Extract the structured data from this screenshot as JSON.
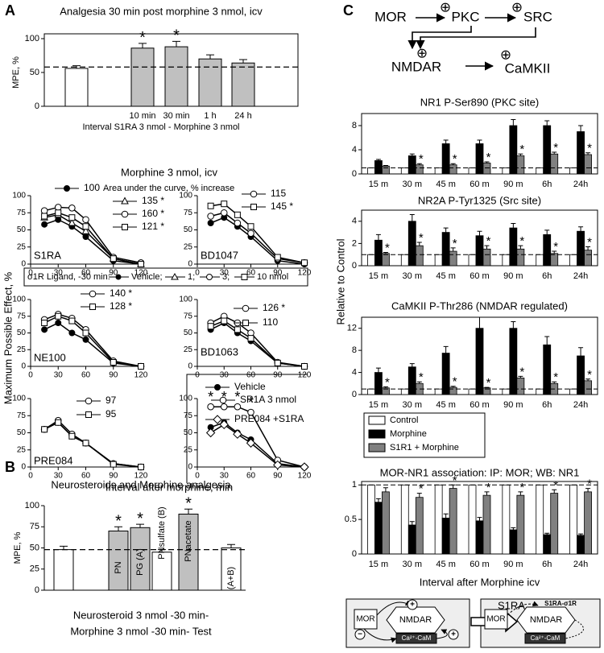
{
  "panel_labels": [
    "A",
    "B",
    "C"
  ],
  "figure_a": {
    "title": "Morphine 3 nmol, icv",
    "ylabel": "Maximum Possible Effect, %",
    "xlabel": "Interval after morphine, min",
    "ligand_legend": {
      "title": "σ1R Ligand, -30 min:",
      "items": [
        "Vehicle;",
        "1;",
        "3;",
        "10 nmol"
      ]
    }
  },
  "panel_c": {
    "ylabel": "Relative to Control"
  },
  "pathway": {
    "nodes": [
      "MOR",
      "PKC",
      "SRC",
      "NMDAR",
      "CaMKII"
    ],
    "sign": "⊕"
  },
  "model": {
    "arrow": "S1RA",
    "left": {
      "mor": "MOR",
      "nmdar": "NMDAR",
      "cam": "Ca²⁺-CaM",
      "plus": "+",
      "minus": "−"
    },
    "right": {
      "complex": "S1RA-σ1R",
      "mor": "MOR",
      "nmdar": "NMDAR",
      "cam": "Ca²⁺-CaM"
    }
  },
  "chart_data": [
    {
      "type": "bar",
      "title": "Analgesia 30 min post morphine 3 nmol, icv",
      "ylabel": "MPE, %",
      "xlabel": "Interval S1RA 3 nmol - Morphine 3 nmol",
      "categories": [
        null,
        "10 min",
        "30 min",
        "1 h",
        "24 h"
      ],
      "values": [
        56,
        86,
        88,
        70,
        64
      ],
      "errors": [
        4,
        7,
        8,
        6,
        5
      ],
      "colors": [
        "#ffffff",
        "#c0c0c0",
        "#c0c0c0",
        "#c0c0c0",
        "#c0c0c0"
      ],
      "ylim": [
        0,
        100
      ],
      "yticks": [
        0,
        50,
        100
      ],
      "reference": 58,
      "star": "*",
      "significant": [
        false,
        true,
        true,
        false,
        false
      ]
    },
    {
      "type": "line",
      "label": "S1RA",
      "legend_title": "Area under the curve, % increase",
      "x": [
        15,
        30,
        45,
        60,
        90,
        120
      ],
      "xlim": [
        0,
        120
      ],
      "xticks": [
        0,
        30,
        60,
        90,
        120
      ],
      "ylim": [
        0,
        100
      ],
      "yticks": [
        0,
        25,
        50,
        75,
        100
      ],
      "series": [
        {
          "name": "100",
          "marker": "filled-circle",
          "color": "#000000",
          "values": [
            58,
            65,
            55,
            40,
            5,
            0
          ]
        },
        {
          "name": "135 *",
          "marker": "triangle",
          "color": "#000000",
          "values": [
            68,
            72,
            60,
            48,
            8,
            0
          ]
        },
        {
          "name": "160 *",
          "marker": "circle",
          "color": "#000000",
          "values": [
            78,
            83,
            82,
            65,
            10,
            2
          ]
        },
        {
          "name": "121 *",
          "marker": "square",
          "color": "#000000",
          "values": [
            70,
            75,
            68,
            55,
            8,
            0
          ]
        }
      ]
    },
    {
      "type": "line",
      "label": "BD1047",
      "x": [
        15,
        30,
        45,
        60,
        90,
        120
      ],
      "xlim": [
        0,
        120
      ],
      "xticks": [
        0,
        30,
        60,
        90,
        120
      ],
      "ylim": [
        0,
        100
      ],
      "yticks": [
        0,
        25,
        50,
        75,
        100
      ],
      "series": [
        {
          "marker": "filled-circle",
          "color": "#000000",
          "values": [
            60,
            68,
            55,
            40,
            5,
            0
          ]
        },
        {
          "name": "115",
          "marker": "circle",
          "color": "#000000",
          "values": [
            70,
            75,
            60,
            45,
            8,
            2
          ]
        },
        {
          "name": "145 *",
          "marker": "square",
          "color": "#000000",
          "values": [
            85,
            88,
            72,
            55,
            10,
            2
          ]
        }
      ]
    },
    {
      "type": "line",
      "label": "NE100",
      "x": [
        15,
        30,
        45,
        60,
        90,
        120
      ],
      "xlim": [
        0,
        120
      ],
      "xticks": [
        0,
        30,
        60,
        90,
        120
      ],
      "ylim": [
        0,
        100
      ],
      "yticks": [
        0,
        25,
        50,
        75,
        100
      ],
      "series": [
        {
          "marker": "filled-circle",
          "color": "#000000",
          "values": [
            55,
            65,
            50,
            40,
            5,
            0
          ]
        },
        {
          "name": "140 *",
          "marker": "circle",
          "color": "#000000",
          "values": [
            70,
            78,
            72,
            55,
            8,
            0
          ]
        },
        {
          "name": "128 *",
          "marker": "square",
          "color": "#000000",
          "values": [
            65,
            75,
            68,
            50,
            6,
            0
          ]
        }
      ]
    },
    {
      "type": "line",
      "label": "BD1063",
      "x": [
        15,
        30,
        45,
        60,
        90,
        120
      ],
      "xlim": [
        0,
        120
      ],
      "xticks": [
        0,
        30,
        60,
        90,
        120
      ],
      "ylim": [
        0,
        100
      ],
      "yticks": [
        0,
        25,
        50,
        75,
        100
      ],
      "series": [
        {
          "marker": "filled-circle",
          "color": "#000000",
          "values": [
            55,
            65,
            50,
            38,
            5,
            0
          ]
        },
        {
          "name": "126 *",
          "marker": "circle",
          "color": "#000000",
          "values": [
            65,
            75,
            65,
            50,
            6,
            0
          ]
        },
        {
          "name": "110",
          "marker": "square",
          "color": "#000000",
          "values": [
            60,
            68,
            55,
            42,
            5,
            0
          ]
        }
      ]
    },
    {
      "type": "line",
      "label": "PRE084",
      "x": [
        15,
        30,
        45,
        60,
        90,
        120
      ],
      "xlim": [
        0,
        120
      ],
      "xticks": [
        0,
        30,
        60,
        90,
        120
      ],
      "ylim": [
        0,
        100
      ],
      "yticks": [
        0,
        25,
        50,
        75,
        100
      ],
      "series": [
        {
          "marker": "filled-circle",
          "color": "#000000",
          "values": [
            55,
            65,
            45,
            35,
            5,
            0
          ]
        },
        {
          "name": "97",
          "marker": "circle",
          "color": "#000000",
          "values": [
            55,
            68,
            48,
            35,
            5,
            0
          ]
        },
        {
          "name": "95",
          "marker": "square",
          "color": "#000000",
          "values": [
            55,
            65,
            45,
            35,
            4,
            0
          ]
        }
      ]
    },
    {
      "type": "line",
      "star": "*",
      "x": [
        15,
        30,
        45,
        60,
        90,
        120
      ],
      "xlim": [
        0,
        120
      ],
      "xticks": [
        0,
        30,
        60,
        90,
        120
      ],
      "ylim": [
        0,
        100
      ],
      "yticks": [
        0,
        25,
        50,
        75,
        100
      ],
      "series": [
        {
          "name": "Vehicle",
          "marker": "filled-circle",
          "color": "#000000",
          "values": [
            58,
            65,
            50,
            40,
            5,
            0
          ]
        },
        {
          "name": "SR1A 3 nmol",
          "marker": "circle",
          "color": "#000000",
          "values": [
            88,
            88,
            88,
            80,
            10,
            0
          ],
          "significant": [
            true,
            true,
            true,
            true,
            false,
            false
          ]
        },
        {
          "name": "PRE084 +S1RA",
          "marker": "diamond",
          "color": "#000000",
          "values": [
            50,
            62,
            48,
            35,
            3,
            0
          ]
        }
      ]
    },
    {
      "type": "bar",
      "title": "Neurosteroids and Morphine analgesia",
      "ylabel": "MPE, %",
      "xlabel": [
        "Neurosteroid 3 nmol -30 min-",
        "Morphine 3 nmol -30 min- Test"
      ],
      "categories": [
        null,
        "PN",
        "PG (A)",
        "PNsulfate (B)",
        "PNacetate",
        "(A+B)"
      ],
      "values": [
        48,
        70,
        74,
        45,
        90,
        50
      ],
      "errors": [
        4,
        5,
        4,
        3,
        6,
        4
      ],
      "colors": [
        "#ffffff",
        "#c0c0c0",
        "#c0c0c0",
        "#ffffff",
        "#c0c0c0",
        "#ffffff"
      ],
      "ylim": [
        0,
        100
      ],
      "yticks": [
        0,
        25,
        50,
        75,
        100
      ],
      "reference": 48,
      "star": "*",
      "significant": [
        false,
        true,
        true,
        false,
        true,
        false
      ]
    },
    {
      "type": "grouped-bar",
      "title": "NR1 P-Ser890 (PKC site)",
      "categories": [
        "15 m",
        "30 m",
        "45 m",
        "60 m",
        "90 m",
        "6h",
        "24h"
      ],
      "ylim": [
        0,
        10
      ],
      "yticks": [
        0,
        4,
        8
      ],
      "reference": 1,
      "star": "*",
      "series": [
        {
          "name": "Control",
          "color": "#ffffff",
          "values": [
            1,
            1,
            1,
            1,
            1,
            1,
            1
          ]
        },
        {
          "name": "Morphine",
          "color": "#000000",
          "values": [
            2.2,
            3.0,
            5.0,
            5.0,
            8.0,
            8.0,
            7.0
          ],
          "errors": [
            0.2,
            0.3,
            0.6,
            0.6,
            1.0,
            0.8,
            1.0
          ]
        },
        {
          "name": "S1R1 + Morphine",
          "color": "#808080",
          "values": [
            1.3,
            1.5,
            1.5,
            1.8,
            3.0,
            3.3,
            3.2
          ],
          "errors": [
            0.1,
            0.2,
            0.2,
            0.2,
            0.3,
            0.3,
            0.3
          ],
          "significant": [
            false,
            true,
            true,
            true,
            true,
            true,
            true
          ]
        }
      ]
    },
    {
      "type": "grouped-bar",
      "title": "NR2A P-Tyr1325 (Src site)",
      "categories": [
        "15 m",
        "30 m",
        "45 m",
        "60 m",
        "90 m",
        "6h",
        "24h"
      ],
      "ylim": [
        0,
        5
      ],
      "yticks": [
        0,
        2,
        4
      ],
      "reference": 1,
      "star": "*",
      "series": [
        {
          "color": "#ffffff",
          "values": [
            1,
            1,
            1,
            1,
            1,
            1,
            1
          ]
        },
        {
          "color": "#000000",
          "values": [
            2.3,
            4.0,
            3.0,
            2.7,
            3.4,
            2.8,
            3.1
          ],
          "errors": [
            0.5,
            0.6,
            0.4,
            0.4,
            0.4,
            0.4,
            0.4
          ]
        },
        {
          "color": "#808080",
          "values": [
            1.1,
            1.8,
            1.3,
            1.5,
            1.5,
            1.1,
            1.4
          ],
          "errors": [
            0.1,
            0.3,
            0.3,
            0.3,
            0.3,
            0.2,
            0.3
          ],
          "significant": [
            true,
            true,
            true,
            true,
            true,
            true,
            true
          ]
        }
      ]
    },
    {
      "type": "grouped-bar",
      "title": "CaMKII P-Thr286 (NMDAR regulated)",
      "categories": [
        "15 m",
        "30 m",
        "45 m",
        "60 m",
        "90 m",
        "6h",
        "24h"
      ],
      "ylim": [
        0,
        14
      ],
      "yticks": [
        0,
        4,
        8,
        12
      ],
      "reference": 1,
      "star": "*",
      "series": [
        {
          "color": "#ffffff",
          "values": [
            1,
            1,
            1,
            1,
            1,
            1,
            1
          ]
        },
        {
          "color": "#000000",
          "values": [
            4,
            5,
            7.5,
            12,
            12,
            9,
            7
          ],
          "errors": [
            0.8,
            0.6,
            1.2,
            2,
            1.2,
            1.5,
            1.5
          ]
        },
        {
          "color": "#808080",
          "values": [
            1.2,
            2,
            1.3,
            1.2,
            3,
            2,
            2.5
          ],
          "errors": [
            0.2,
            0.3,
            0.2,
            0.1,
            0.3,
            0.3,
            0.3
          ],
          "significant": [
            true,
            true,
            true,
            true,
            true,
            true,
            true
          ]
        }
      ]
    },
    {
      "type": "grouped-bar",
      "title": "MOR-NR1 association: IP: MOR; WB: NR1",
      "xlabel": "Interval after Morphine icv",
      "categories": [
        "15 m",
        "30 m",
        "45 m",
        "60 m",
        "90 m",
        "6h",
        "24h"
      ],
      "ylim": [
        0,
        1.05
      ],
      "yticks": [
        0,
        0.5,
        1
      ],
      "reference": 1,
      "star": "*",
      "series": [
        {
          "color": "#ffffff",
          "values": [
            1,
            1,
            1,
            1,
            1,
            1,
            1
          ]
        },
        {
          "color": "#000000",
          "values": [
            0.75,
            0.42,
            0.52,
            0.48,
            0.35,
            0.28,
            0.27
          ],
          "errors": [
            0.05,
            0.05,
            0.06,
            0.05,
            0.03,
            0.02,
            0.02
          ]
        },
        {
          "color": "#808080",
          "values": [
            0.9,
            0.82,
            0.95,
            0.85,
            0.85,
            0.88,
            0.9
          ],
          "errors": [
            0.06,
            0.06,
            0.05,
            0.05,
            0.05,
            0.05,
            0.05
          ],
          "significant": [
            false,
            true,
            true,
            true,
            true,
            true,
            true
          ]
        }
      ]
    }
  ]
}
